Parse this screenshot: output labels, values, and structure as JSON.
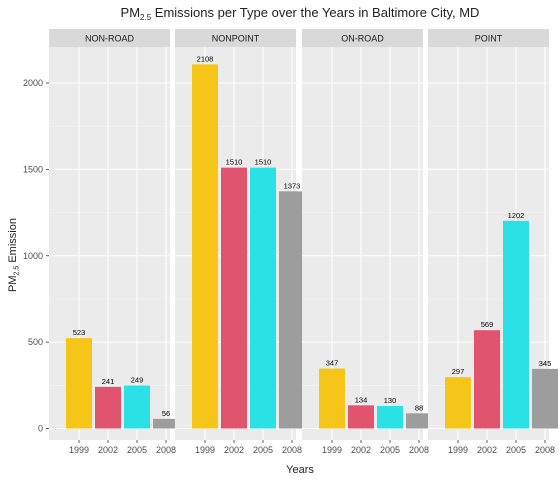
{
  "chart_data": {
    "type": "bar",
    "title": {
      "prefix": "PM",
      "subscript": "2.5",
      "suffix": " Emissions per Type over the Years in Baltimore City, MD"
    },
    "xlabel": "Years",
    "ylabel": {
      "prefix": "PM",
      "subscript": "2.5",
      "suffix": " Emission"
    },
    "categories": [
      "1999",
      "2002",
      "2005",
      "2008"
    ],
    "y_ticks": [
      0,
      500,
      1000,
      1500,
      2000
    ],
    "ylim": [
      0,
      2200
    ],
    "grid": true,
    "bar_colors": [
      "#f5c518",
      "#e0546e",
      "#2ae1e6",
      "#9d9d9d"
    ],
    "panels": [
      {
        "name": "NON-ROAD",
        "values": [
          523,
          241,
          249,
          56
        ],
        "labels": [
          "523",
          "241",
          "249",
          "56"
        ]
      },
      {
        "name": "NONPOINT",
        "values": [
          2108,
          1510,
          1510,
          1373
        ],
        "labels": [
          "2108",
          "1510",
          "1510",
          "1373"
        ]
      },
      {
        "name": "ON-ROAD",
        "values": [
          347,
          134,
          130,
          88
        ],
        "labels": [
          "347",
          "134",
          "130",
          "88"
        ]
      },
      {
        "name": "POINT",
        "values": [
          297,
          569,
          1202,
          345
        ],
        "labels": [
          "297",
          "569",
          "1202",
          "345"
        ]
      }
    ]
  }
}
